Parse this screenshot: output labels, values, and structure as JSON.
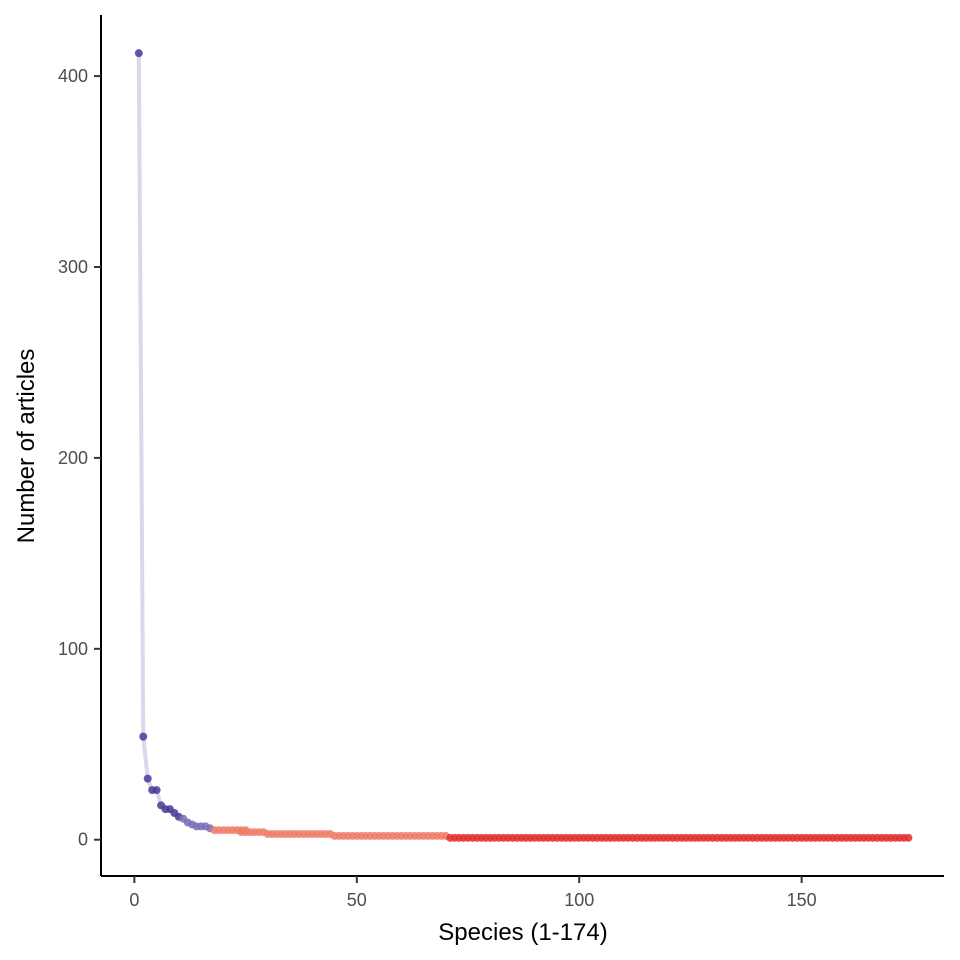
{
  "chart_data": {
    "type": "scatter",
    "title": "",
    "xlabel": "Species (1-174)",
    "ylabel": "Number of articles",
    "xlim": [
      -7.5,
      182
    ],
    "ylim": [
      -19,
      432
    ],
    "x_ticks": [
      0,
      50,
      100,
      150
    ],
    "y_ticks": [
      0,
      100,
      200,
      300,
      400
    ],
    "grid": false,
    "legend": "none",
    "line_color": "#d9d8ec",
    "series": [
      {
        "color": "#4a3a96",
        "points": [
          [
            1,
            412
          ],
          [
            2,
            54
          ],
          [
            3,
            32
          ],
          [
            4,
            26
          ],
          [
            5,
            26
          ],
          [
            6,
            18
          ],
          [
            7,
            16
          ],
          [
            8,
            16
          ],
          [
            9,
            14
          ],
          [
            10,
            12
          ]
        ]
      },
      {
        "color": "#7a6db8",
        "points": [
          [
            11,
            11
          ],
          [
            12,
            9
          ],
          [
            13,
            8
          ],
          [
            14,
            7
          ],
          [
            15,
            7
          ],
          [
            16,
            7
          ],
          [
            17,
            6
          ]
        ]
      },
      {
        "color": "#f07e6a",
        "ranges": [
          {
            "x_from": 18,
            "x_to": 25,
            "y": 5
          },
          {
            "x_from": 24,
            "x_to": 29,
            "y": 4
          },
          {
            "x_from": 30,
            "x_to": 44,
            "y": 3
          },
          {
            "x_from": 45,
            "x_to": 70,
            "y": 2
          }
        ]
      },
      {
        "color": "#e33030",
        "ranges": [
          {
            "x_from": 71,
            "x_to": 174,
            "y": 1
          }
        ]
      }
    ]
  }
}
